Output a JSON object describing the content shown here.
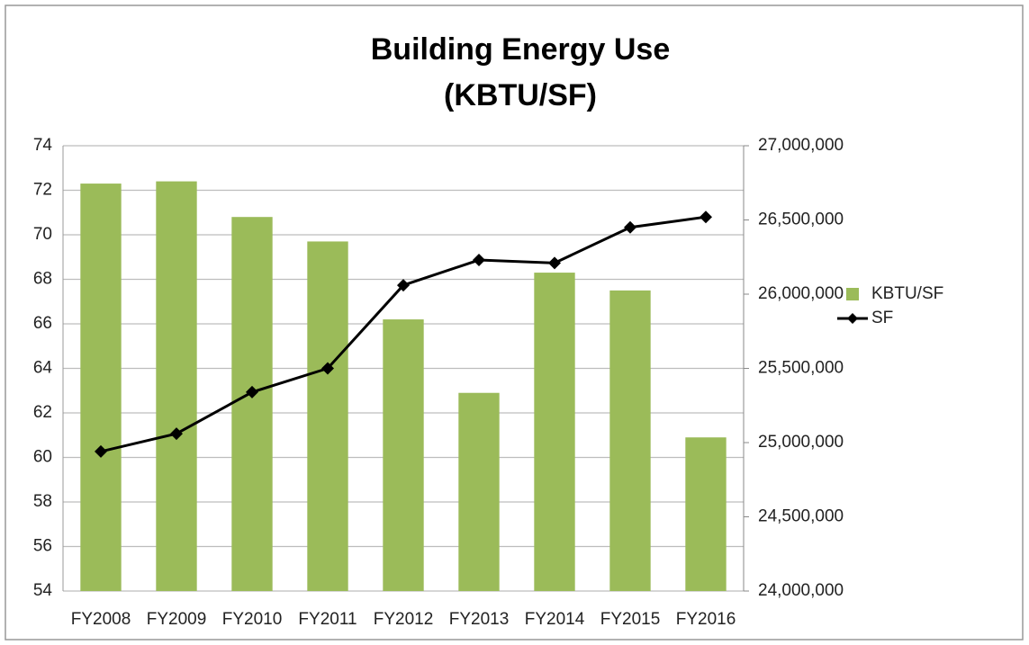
{
  "chart_data": {
    "type": "bar",
    "title": [
      "Building Energy Use",
      "(KBTU/SF)"
    ],
    "categories": [
      "FY2008",
      "FY2009",
      "FY2010",
      "FY2011",
      "FY2012",
      "FY2013",
      "FY2014",
      "FY2015",
      "FY2016"
    ],
    "series": [
      {
        "name": "KBTU/SF",
        "type": "bar",
        "color": "#9bbb59",
        "values": [
          72.3,
          72.4,
          70.8,
          69.7,
          66.2,
          62.9,
          68.3,
          67.5,
          60.9
        ]
      },
      {
        "name": "SF",
        "type": "line",
        "axis": "y2",
        "color": "#000000",
        "values": [
          24940000,
          25060000,
          25340000,
          25500000,
          26060000,
          26230000,
          26210000,
          26450000,
          26520000
        ]
      }
    ],
    "ylim": [
      54,
      74
    ],
    "yticks": [
      54,
      56,
      58,
      60,
      62,
      64,
      66,
      68,
      70,
      72,
      74
    ],
    "y2lim": [
      24000000,
      27000000
    ],
    "y2ticks": [
      {
        "value": 24000000,
        "label": "24,000,000"
      },
      {
        "value": 24500000,
        "label": "24,500,000"
      },
      {
        "value": 25000000,
        "label": "25,000,000"
      },
      {
        "value": 25500000,
        "label": "25,500,000"
      },
      {
        "value": 26000000,
        "label": "26,000,000"
      },
      {
        "value": 26500000,
        "label": "26,500,000"
      },
      {
        "value": 27000000,
        "label": "27,000,000"
      }
    ],
    "grid": true,
    "legend": "right"
  }
}
